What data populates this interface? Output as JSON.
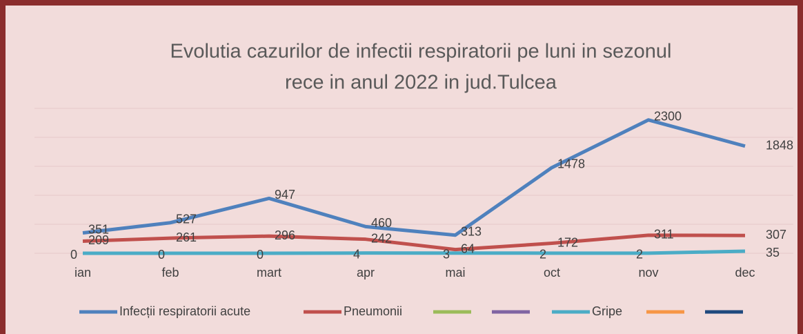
{
  "chart_data": {
    "type": "line",
    "title": [
      "Evolutia cazurilor de infectii respiratorii pe luni in sezonul",
      "rece in anul 2022 in jud.Tulcea"
    ],
    "categories": [
      "ian",
      "feb",
      "mart",
      "apr",
      "mai",
      "oct",
      "nov",
      "dec"
    ],
    "series": [
      {
        "name": "Infecții respiratorii acute",
        "color": "#4F81BD",
        "values": [
          351,
          527,
          947,
          460,
          313,
          1478,
          2300,
          1848
        ]
      },
      {
        "name": "Pneumonii",
        "color": "#C0504D",
        "values": [
          209,
          261,
          296,
          242,
          64,
          172,
          311,
          307
        ]
      },
      {
        "name": null,
        "color": "#9BBB59",
        "values": [
          null,
          null,
          null,
          null,
          null,
          null,
          null,
          null
        ]
      },
      {
        "name": null,
        "color": "#8064A2",
        "values": [
          null,
          null,
          null,
          null,
          null,
          null,
          null,
          null
        ]
      },
      {
        "name": "Gripe",
        "color": "#4BACC6",
        "values": [
          0,
          0,
          0,
          4,
          3,
          2,
          2,
          35
        ]
      },
      {
        "name": null,
        "color": "#F79646",
        "values": [
          null,
          null,
          null,
          null,
          null,
          null,
          null,
          null
        ]
      },
      {
        "name": null,
        "color": "#1F497D",
        "values": [
          null,
          null,
          null,
          null,
          null,
          null,
          null,
          null
        ]
      }
    ],
    "ylim": [
      0,
      2500
    ],
    "yticks": [
      0,
      500,
      1000,
      1500,
      2000,
      2500
    ],
    "grid": true,
    "legend": "bottom"
  }
}
